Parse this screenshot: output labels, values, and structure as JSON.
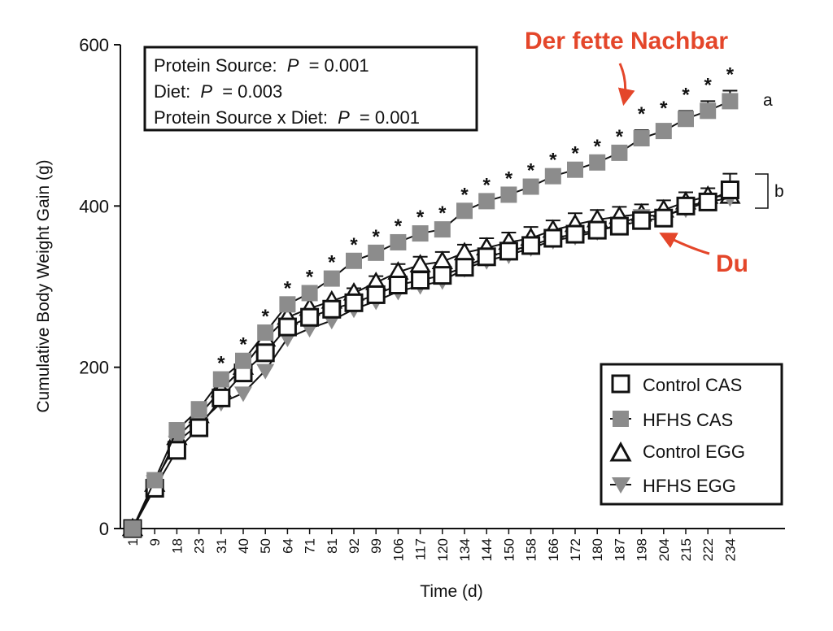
{
  "chart_data": {
    "type": "line",
    "title": "",
    "xlabel": "Time (d)",
    "ylabel": "Cumulative Body Weight Gain (g)",
    "ylim": [
      0,
      600
    ],
    "yticks": [
      0,
      200,
      400,
      600
    ],
    "categories": [
      "1",
      "9",
      "18",
      "23",
      "31",
      "40",
      "50",
      "64",
      "71",
      "81",
      "92",
      "99",
      "106",
      "117",
      "120",
      "134",
      "144",
      "150",
      "158",
      "166",
      "172",
      "180",
      "187",
      "198",
      "204",
      "215",
      "222",
      "234"
    ],
    "series": [
      {
        "name": "Control CAS",
        "marker": "square-open",
        "color": "#111111",
        "values": [
          0,
          50,
          97,
          125,
          162,
          193,
          218,
          250,
          262,
          272,
          280,
          290,
          302,
          308,
          314,
          324,
          337,
          344,
          351,
          360,
          365,
          370,
          375,
          382,
          385,
          400,
          405,
          420
        ],
        "errors": [
          0,
          0,
          0,
          0,
          0,
          0,
          0,
          0,
          0,
          0,
          0,
          0,
          0,
          0,
          0,
          0,
          0,
          0,
          0,
          0,
          0,
          0,
          0,
          0,
          0,
          0,
          0,
          20
        ]
      },
      {
        "name": "HFHS CAS",
        "marker": "square-filled",
        "color": "#8c8c8c",
        "values": [
          0,
          60,
          122,
          148,
          185,
          208,
          243,
          278,
          292,
          310,
          332,
          342,
          355,
          366,
          371,
          394,
          406,
          414,
          424,
          437,
          445,
          454,
          466,
          484,
          493,
          508,
          518,
          530
        ],
        "errors": [
          0,
          0,
          0,
          0,
          0,
          0,
          0,
          0,
          0,
          0,
          0,
          0,
          0,
          0,
          0,
          0,
          0,
          0,
          0,
          0,
          0,
          0,
          0,
          10,
          8,
          10,
          12,
          13
        ]
      },
      {
        "name": "Control EGG",
        "marker": "triangle-open",
        "color": "#111111",
        "values": [
          0,
          55,
          113,
          140,
          172,
          200,
          235,
          262,
          273,
          282,
          292,
          305,
          318,
          327,
          331,
          342,
          348,
          355,
          360,
          370,
          377,
          383,
          387,
          390,
          395,
          405,
          412,
          412
        ],
        "errors": [
          0,
          0,
          0,
          0,
          0,
          0,
          0,
          0,
          0,
          0,
          6,
          8,
          10,
          10,
          12,
          10,
          12,
          12,
          14,
          12,
          14,
          12,
          12,
          12,
          12,
          12,
          10,
          12
        ]
      },
      {
        "name": "HFHS EGG",
        "marker": "triangle-down-filled",
        "color": "#8c8c8c",
        "values": [
          0,
          58,
          107,
          130,
          156,
          168,
          196,
          236,
          248,
          258,
          272,
          282,
          294,
          301,
          307,
          322,
          332,
          339,
          348,
          357,
          362,
          368,
          378,
          388,
          388,
          396,
          405,
          410
        ],
        "errors": [
          0,
          0,
          0,
          0,
          0,
          0,
          0,
          0,
          0,
          0,
          0,
          0,
          0,
          0,
          0,
          0,
          0,
          0,
          0,
          0,
          0,
          0,
          0,
          0,
          0,
          0,
          0,
          0
        ]
      }
    ],
    "significance_star": "*",
    "significant_from_index": 4,
    "group_labels": {
      "a": "a",
      "b": "b"
    },
    "stats": [
      {
        "label": "Protein Source:",
        "p_symbol": "P",
        "value": "= 0.001"
      },
      {
        "label": "Diet:",
        "p_symbol": "P",
        "value": "= 0.003"
      },
      {
        "label": "Protein Source x Diet:",
        "p_symbol": "P",
        "value": "= 0.001"
      }
    ],
    "annotations": [
      {
        "text": "Der fette Nachbar",
        "color": "#e4462a",
        "points_to": "HFHS CAS"
      },
      {
        "text": "Du",
        "color": "#e4462a",
        "points_to": "Control CAS"
      }
    ],
    "legend_position": "bottom-right"
  }
}
